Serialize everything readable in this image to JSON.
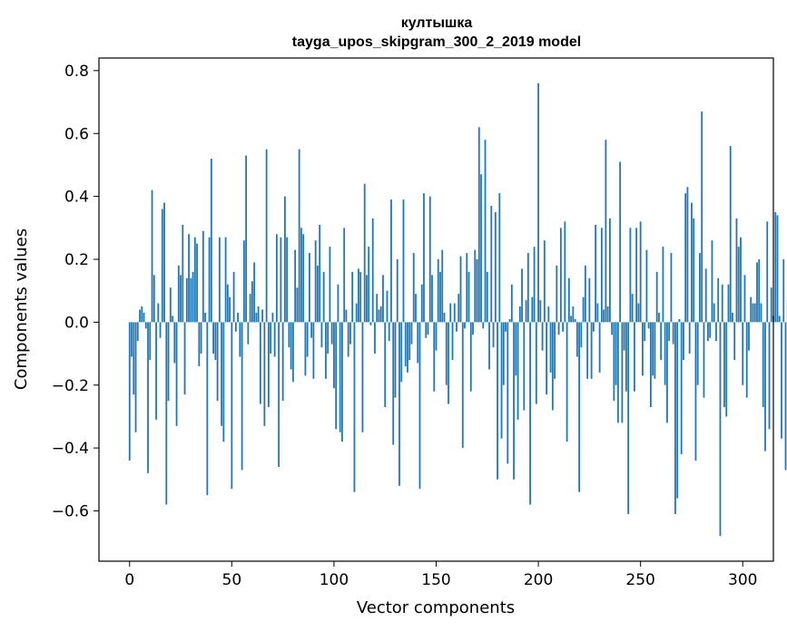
{
  "chart_data": {
    "type": "bar",
    "title": "култышка",
    "subtitle": "tayga_upos_skipgram_300_2_2019 model",
    "xlabel": "Vector components",
    "ylabel": "Components values",
    "xlim": [
      -15,
      315
    ],
    "ylim": [
      -0.76,
      0.84
    ],
    "xticks": [
      0,
      50,
      100,
      150,
      200,
      250,
      300
    ],
    "xtick_labels": [
      "0",
      "50",
      "100",
      "150",
      "200",
      "250",
      "300"
    ],
    "yticks": [
      -0.6,
      -0.4,
      -0.2,
      0.0,
      0.2,
      0.4,
      0.6,
      0.8
    ],
    "ytick_labels": [
      "−0.6",
      "−0.4",
      "−0.2",
      "0.0",
      "0.2",
      "0.4",
      "0.6",
      "0.8"
    ],
    "bar_color": "#1f77b4",
    "values": [
      -0.44,
      -0.11,
      -0.23,
      -0.35,
      -0.06,
      0.04,
      0.05,
      0.03,
      -0.02,
      -0.48,
      -0.12,
      0.42,
      0.15,
      -0.31,
      0.06,
      -0.05,
      0.36,
      0.38,
      -0.58,
      -0.25,
      0.11,
      0.02,
      -0.13,
      -0.33,
      0.18,
      0.15,
      0.31,
      -0.23,
      0.14,
      0.28,
      0.14,
      0.16,
      0.27,
      0.25,
      -0.14,
      -0.1,
      0.29,
      0.03,
      -0.55,
      0.27,
      0.52,
      -0.1,
      -0.12,
      -0.25,
      0.27,
      -0.33,
      -0.38,
      0.27,
      0.12,
      0.08,
      -0.53,
      0.16,
      -0.03,
      0.03,
      -0.11,
      -0.47,
      0.26,
      0.53,
      -0.07,
      0.09,
      0.13,
      0.19,
      0.03,
      0.05,
      -0.26,
      0.04,
      -0.33,
      0.55,
      -0.27,
      -0.1,
      0.03,
      -0.11,
      0.28,
      -0.46,
      0.27,
      -0.25,
      0.4,
      0.27,
      -0.08,
      -0.15,
      -0.19,
      0.23,
      0.11,
      0.55,
      0.3,
      0.28,
      -0.17,
      -0.11,
      0.22,
      -0.05,
      -0.18,
      0.26,
      0.18,
      0.31,
      -0.08,
      0.16,
      -0.18,
      -0.1,
      0.24,
      -0.07,
      -0.21,
      -0.34,
      0.12,
      -0.35,
      -0.38,
      0.3,
      0.04,
      -0.11,
      -0.07,
      0.16,
      -0.54,
      0.06,
      0.17,
      0.16,
      -0.35,
      0.44,
      0.15,
      0.24,
      -0.01,
      0.33,
      -0.1,
      0.09,
      0.04,
      0.05,
      0.15,
      -0.27,
      0.1,
      -0.06,
      0.39,
      -0.39,
      -0.24,
      0.2,
      -0.52,
      -0.19,
      0.39,
      -0.14,
      -0.16,
      -0.12,
      -0.07,
      0.22,
      0.09,
      -0.13,
      -0.53,
      0.12,
      0.41,
      -0.05,
      -0.04,
      0.4,
      0.15,
      -0.22,
      -0.09,
      0.2,
      0.16,
      0.23,
      0.03,
      -0.2,
      -0.26,
      0.06,
      -0.12,
      0.06,
      -0.03,
      0.09,
      0.21,
      -0.4,
      -0.02,
      0.22,
      0.16,
      -0.22,
      -0.04,
      0.23,
      0.2,
      0.62,
      0.47,
      -0.02,
      0.58,
      0.16,
      -0.15,
      0.37,
      -0.08,
      0.35,
      -0.5,
      0.41,
      -0.37,
      -0.2,
      -0.03,
      -0.45,
      0.01,
      0.12,
      -0.5,
      -0.17,
      -0.31,
      0.05,
      0.17,
      -0.28,
      0.07,
      0.22,
      -0.58,
      0.08,
      0.24,
      -0.26,
      0.76,
      0.07,
      -0.09,
      0.26,
      -0.23,
      0.05,
      -0.16,
      -0.28,
      -0.18,
      0.18,
      -0.04,
      0.3,
      -0.03,
      0.32,
      -0.38,
      0.14,
      0.02,
      0.05,
      0.01,
      -0.11,
      -0.54,
      -0.08,
      0.08,
      0.18,
      -0.18,
      0.14,
      -0.18,
      -0.03,
      0.31,
      0.06,
      -0.16,
      0.3,
      0.04,
      0.58,
      0.05,
      0.33,
      -0.04,
      -0.25,
      -0.2,
      -0.32,
      0.51,
      -0.32,
      -0.09,
      -0.22,
      -0.61,
      0.3,
      0.09,
      -0.22,
      0.3,
      0.06,
      0.32,
      -0.17,
      -0.06,
      0.23,
      -0.02,
      -0.27,
      -0.17,
      -0.18,
      0.16,
      0.03,
      -0.12,
      0.24,
      -0.2,
      -0.32,
      -0.06,
      0.22,
      -0.07,
      -0.61,
      -0.56,
      0.01,
      -0.42,
      -0.12,
      0.41,
      0.43,
      -0.1,
      0.38,
      0.33,
      -0.44,
      -0.2,
      0.22,
      0.67,
      -0.24,
      0.17,
      -0.06,
      -0.05,
      0.26,
      0.06,
      -0.06,
      0.14,
      -0.68,
      0.12,
      -0.27,
      -0.3,
      0.12,
      0.56,
      0.03,
      -0.12,
      0.33,
      0.24,
      0.27,
      -0.2,
      0.15,
      -0.24,
      -0.09,
      0.08,
      0.06,
      0.06,
      0.19,
      0.2,
      0.06,
      -0.27,
      -0.41,
      0.32,
      -0.34,
      0.11,
      0.02,
      0.35,
      0.34,
      0.02,
      -0.37,
      0.2,
      -0.47,
      0.07,
      -0.08
    ]
  }
}
